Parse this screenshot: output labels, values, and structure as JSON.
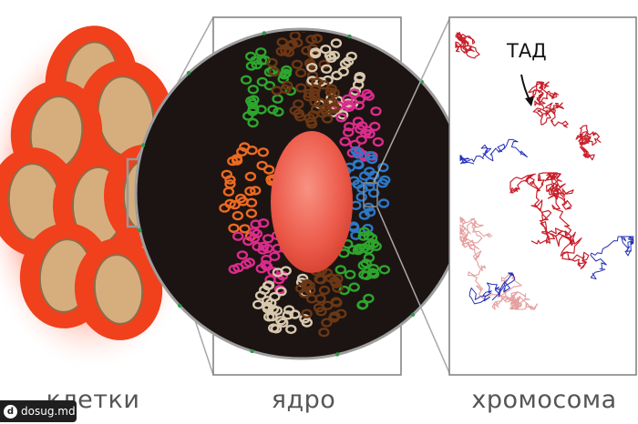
{
  "captions": {
    "cells": "клетки",
    "nucleus": "ядро",
    "chromosome": "хромосома"
  },
  "annotation": {
    "tad": "ТАД"
  },
  "watermark": {
    "logo": "d",
    "text": "dosug.md"
  },
  "colors": {
    "cell": "#f0401c",
    "cell_glow": "#ff6e50",
    "cell_nucleus": "#d6ae7e",
    "nucleolus": "#ee5d4e",
    "chromatin_green": "#2ea52e",
    "chromatin_brown": "#6b3714",
    "chromatin_beige": "#d8c8ae",
    "chromatin_magenta": "#dc2b8c",
    "chromatin_orange": "#ec6a22",
    "chromatin_blue": "#2d78c7",
    "chrom_red": "#c8202b",
    "chrom_pink": "#e5a0a0",
    "chrom_blue": "#2530b8"
  }
}
